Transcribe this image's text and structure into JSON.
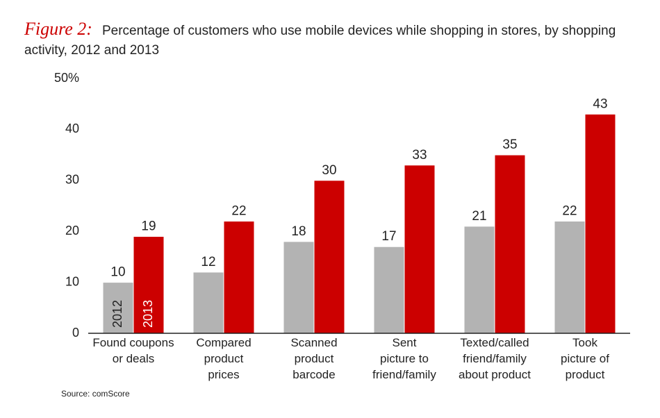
{
  "chart_data": {
    "type": "bar",
    "figure_label": "Figure 2:",
    "title": "Percentage of customers who use mobile devices while shopping in stores, by shopping activity, 2012 and 2013",
    "categories": [
      "Found coupons\nor deals",
      "Compared\nproduct\nprices",
      "Scanned\nproduct\nbarcode",
      "Sent\npicture to\nfriend/family",
      "Texted/called\nfriend/family\nabout product",
      "Took\npicture of\nproduct"
    ],
    "series": [
      {
        "name": "2012",
        "color": "#b3b3b3",
        "values": [
          10,
          12,
          18,
          17,
          21,
          22
        ]
      },
      {
        "name": "2013",
        "color": "#cc0000",
        "values": [
          19,
          22,
          30,
          33,
          35,
          43
        ]
      }
    ],
    "ylim": [
      0,
      50
    ],
    "yticks": [
      0,
      10,
      20,
      30,
      40,
      {
        "value": 50,
        "label": "50%"
      }
    ],
    "grid": false,
    "source": "Source: comScore"
  }
}
